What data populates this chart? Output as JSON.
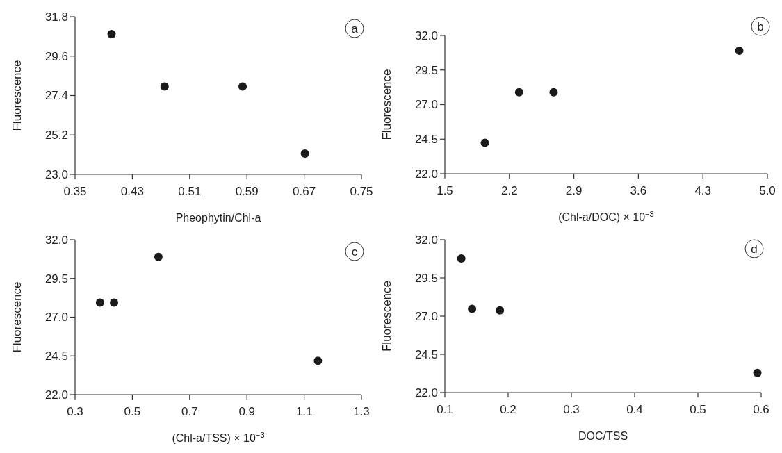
{
  "chart_data": [
    {
      "type": "scatter",
      "xlabel": "Pheophytin/Chl-a",
      "ylabel": "Fluorescence",
      "annotations": [
        "a"
      ],
      "marker": "circle",
      "x": [
        0.401,
        0.475,
        0.584,
        0.671
      ],
      "series": [
        {
          "color": "#1a1a1a",
          "values": [
            30.83,
            27.9,
            27.9,
            24.16
          ]
        }
      ],
      "xlim": [
        0.35,
        0.75
      ],
      "xticks": [
        0.35,
        0.43,
        0.51,
        0.59,
        0.67,
        0.75
      ],
      "ylim": [
        23.0,
        31.8
      ],
      "yticks": [
        {
          "value": 23.0,
          "label": "23.0"
        },
        25.2,
        27.4,
        29.6,
        31.8
      ]
    },
    {
      "type": "scatter",
      "xlabel": "(Chl-a/DOC) × 10$^{−3}$",
      "ylabel": "Fluorescence",
      "annotations": [
        "b"
      ],
      "marker": "circle",
      "x": [
        1.934,
        2.306,
        2.68,
        4.695
      ],
      "series": [
        {
          "color": "#1a1a1a",
          "values": [
            24.23,
            27.89,
            27.89,
            30.9
          ]
        }
      ],
      "xlim": [
        1.5,
        5.0
      ],
      "xticks": [
        1.5,
        2.2,
        2.9,
        3.6,
        4.3,
        {
          "value": 5.0,
          "label": "5.0"
        }
      ],
      "ylim": [
        22.0,
        32.0
      ],
      "yticks": [
        {
          "value": 22.0,
          "label": "22.0"
        },
        24.5,
        {
          "value": 27.0,
          "label": "27.0"
        },
        29.5,
        {
          "value": 32.0,
          "label": "32.0"
        }
      ]
    },
    {
      "type": "scatter",
      "xlabel": "(Chl-a/TSS) × 10$^{−3}$",
      "ylabel": "Fluorescence",
      "annotations": [
        "c"
      ],
      "marker": "circle",
      "x": [
        0.387,
        0.436,
        0.591,
        1.148
      ],
      "series": [
        {
          "color": "#1a1a1a",
          "values": [
            27.94,
            27.94,
            30.89,
            24.19
          ]
        }
      ],
      "xlim": [
        0.3,
        1.3
      ],
      "xticks": [
        0.3,
        0.5,
        0.7,
        0.9,
        1.1,
        1.3
      ],
      "ylim": [
        22.0,
        32.0
      ],
      "yticks": [
        {
          "value": 22.0,
          "label": "22.0"
        },
        24.5,
        {
          "value": 27.0,
          "label": "27.0"
        },
        29.5,
        {
          "value": 32.0,
          "label": "32.0"
        }
      ]
    },
    {
      "type": "scatter",
      "xlabel": "DOC/TSS",
      "ylabel": "Fluorescence",
      "annotations": [
        "d"
      ],
      "marker": "circle",
      "x": [
        0.126,
        0.143,
        0.187,
        0.594
      ],
      "series": [
        {
          "color": "#1a1a1a",
          "values": [
            30.77,
            27.48,
            27.38,
            23.28
          ]
        }
      ],
      "xlim": [
        0.1,
        0.6
      ],
      "xticks": [
        0.1,
        0.2,
        0.3,
        0.4,
        0.5,
        0.6
      ],
      "ylim": [
        22.0,
        32.0
      ],
      "yticks": [
        {
          "value": 22.0,
          "label": "22.0"
        },
        24.5,
        {
          "value": 27.0,
          "label": "27.0"
        },
        29.5,
        {
          "value": 32.0,
          "label": "32.0"
        }
      ]
    }
  ]
}
